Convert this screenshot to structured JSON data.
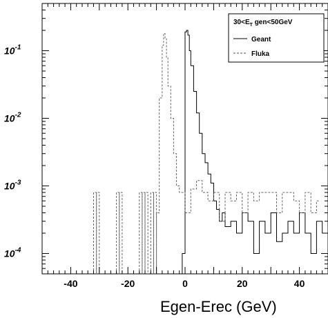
{
  "chart_data": {
    "type": "line",
    "xlabel": "Egen-Erec (GeV)",
    "ylabel": "",
    "xlim": [
      -50,
      50
    ],
    "ylim": [
      5e-05,
      0.5
    ],
    "yscale": "log",
    "x_ticks": [
      "-40",
      "-20",
      "0",
      "20",
      "40"
    ],
    "y_ticks": [
      {
        "base": "10",
        "exp": "-1"
      },
      {
        "base": "10",
        "exp": "-2"
      },
      {
        "base": "10",
        "exp": "-3"
      },
      {
        "base": "10",
        "exp": "-4"
      }
    ],
    "legend": {
      "title": "30<E",
      "title_sub": "T",
      "title_rest": " gen<50GeV",
      "position": "top-right"
    },
    "series": [
      {
        "name": "Geant",
        "style": "solid",
        "x": [
          -1,
          0,
          0.5,
          1,
          1.5,
          2,
          3,
          4,
          5,
          6,
          7,
          8,
          9,
          10,
          11,
          12,
          13,
          14,
          16,
          18,
          20,
          22,
          24,
          26,
          28,
          30,
          32,
          34,
          36,
          38,
          40,
          42,
          44,
          46,
          48
        ],
        "y": [
          0.0001,
          0.19,
          0.2,
          0.17,
          0.1,
          0.06,
          0.025,
          0.012,
          0.006,
          0.003,
          0.0022,
          0.0015,
          0.0011,
          0.0006,
          0.00045,
          0.0003,
          0.0004,
          0.00025,
          0.0003,
          0.0002,
          0.0004,
          0.0003,
          0.0001,
          0.0003,
          0.0002,
          0.0004,
          0.00015,
          0.0002,
          0.0003,
          0.0002,
          0.0004,
          0.0002,
          0.0001,
          0.0003,
          0.0002
        ]
      },
      {
        "name": "Fluka",
        "style": "dashed",
        "x": [
          -10,
          -9,
          -8,
          -7.5,
          -7,
          -6.5,
          -6,
          -5,
          -4,
          -3,
          -2,
          0,
          2,
          4,
          6,
          8,
          10,
          12,
          14,
          16,
          18,
          20,
          22,
          24,
          26,
          28,
          30,
          32,
          34,
          36,
          38,
          40,
          42,
          44,
          46
        ],
        "y": [
          0.0004,
          0.02,
          0.12,
          0.18,
          0.15,
          0.08,
          0.03,
          0.01,
          0.003,
          0.001,
          0.0008,
          0.0004,
          0.0009,
          0.0012,
          0.0008,
          0.0006,
          0.0008,
          0.0003,
          0.0008,
          0.0006,
          0.0008,
          0.0004,
          0.0008,
          0.0006,
          0.0008,
          0.0008,
          0.0008,
          0.0004,
          0.0008,
          0.0008,
          0.0006,
          0.0004,
          0.0008,
          0.0004,
          0.0006
        ]
      }
    ],
    "fluka_spikes": [
      -32,
      -31,
      -24,
      -23,
      -16,
      -15,
      -14,
      -12,
      -11
    ]
  }
}
